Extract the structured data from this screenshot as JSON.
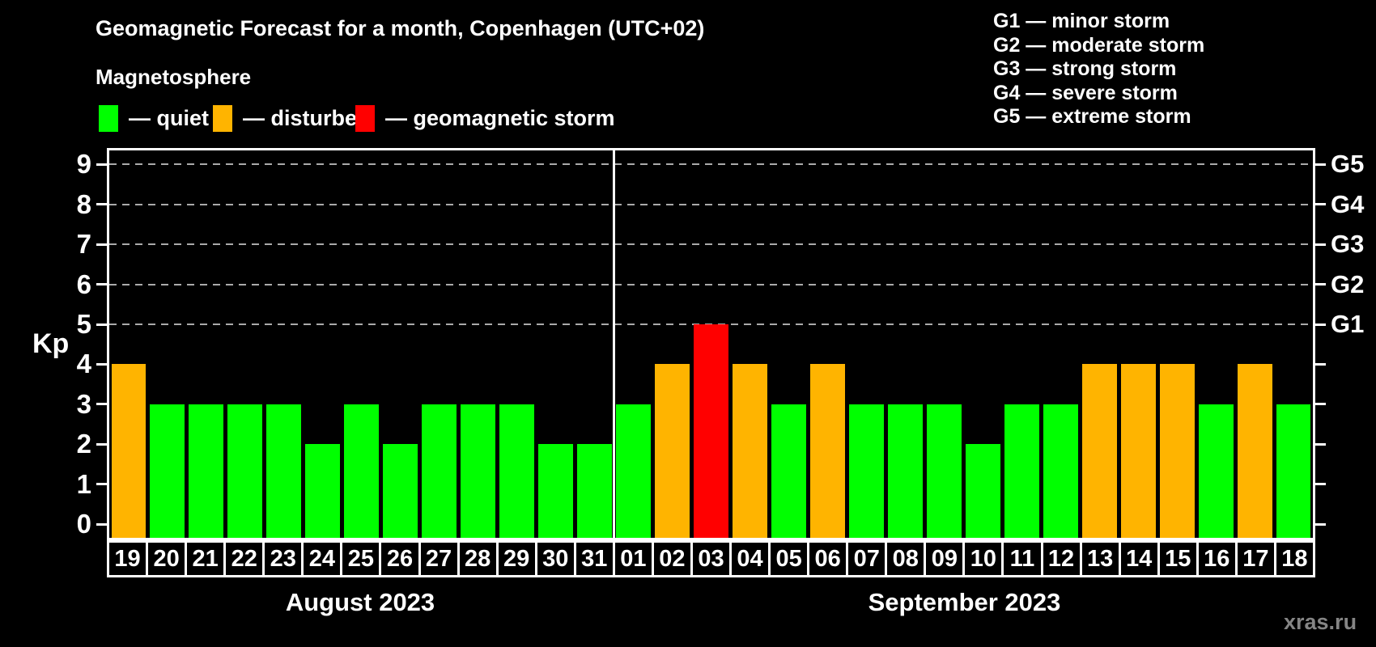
{
  "title": "Geomagnetic Forecast for a month, Copenhagen (UTC+02)",
  "subtitle": "Magnetosphere",
  "legend": {
    "items": [
      {
        "id": "quiet",
        "label": "— quiet",
        "color": "#00ff00"
      },
      {
        "id": "disturbed",
        "label": "— disturbed",
        "color": "#ffb400"
      },
      {
        "id": "storm",
        "label": "— geomagnetic storm",
        "color": "#ff0000"
      }
    ]
  },
  "g_legend": [
    "G1 — minor storm",
    "G2 — moderate storm",
    "G3 — strong storm",
    "G4 — severe storm",
    "G5 — extreme storm"
  ],
  "y_axis": {
    "label": "Kp",
    "ticks": [
      0,
      1,
      2,
      3,
      4,
      5,
      6,
      7,
      8,
      9
    ]
  },
  "right_axis": {
    "levels": [
      {
        "kp": 5,
        "label": "G1"
      },
      {
        "kp": 6,
        "label": "G2"
      },
      {
        "kp": 7,
        "label": "G3"
      },
      {
        "kp": 8,
        "label": "G4"
      },
      {
        "kp": 9,
        "label": "G5"
      }
    ]
  },
  "watermark": "xras.ru",
  "chart_data": {
    "type": "bar",
    "title": "Geomagnetic Forecast for a month, Copenhagen (UTC+02)",
    "ylabel": "Kp",
    "ylim": [
      0,
      9
    ],
    "grid": "dashed horizontal lines at Kp 5,6,7,8,9 (G1–G5)",
    "legend_position": "top",
    "status_colors": {
      "quiet": "#00ff00",
      "disturbed": "#ffb400",
      "storm": "#ff0000"
    },
    "months": [
      {
        "label": "August 2023",
        "days": [
          "19",
          "20",
          "21",
          "22",
          "23",
          "24",
          "25",
          "26",
          "27",
          "28",
          "29",
          "30",
          "31"
        ],
        "values": [
          4,
          3,
          3,
          3,
          3,
          2,
          3,
          2,
          3,
          3,
          3,
          2,
          2
        ],
        "statuses": [
          "disturbed",
          "quiet",
          "quiet",
          "quiet",
          "quiet",
          "quiet",
          "quiet",
          "quiet",
          "quiet",
          "quiet",
          "quiet",
          "quiet",
          "quiet"
        ]
      },
      {
        "label": "September 2023",
        "days": [
          "01",
          "02",
          "03",
          "04",
          "05",
          "06",
          "07",
          "08",
          "09",
          "10",
          "11",
          "12",
          "13",
          "14",
          "15",
          "16",
          "17",
          "18"
        ],
        "values": [
          3,
          4,
          5,
          4,
          3,
          4,
          3,
          3,
          3,
          2,
          3,
          3,
          4,
          4,
          4,
          3,
          4,
          3
        ],
        "statuses": [
          "quiet",
          "disturbed",
          "storm",
          "disturbed",
          "quiet",
          "disturbed",
          "quiet",
          "quiet",
          "quiet",
          "quiet",
          "quiet",
          "quiet",
          "disturbed",
          "disturbed",
          "disturbed",
          "quiet",
          "disturbed",
          "quiet"
        ]
      }
    ]
  }
}
